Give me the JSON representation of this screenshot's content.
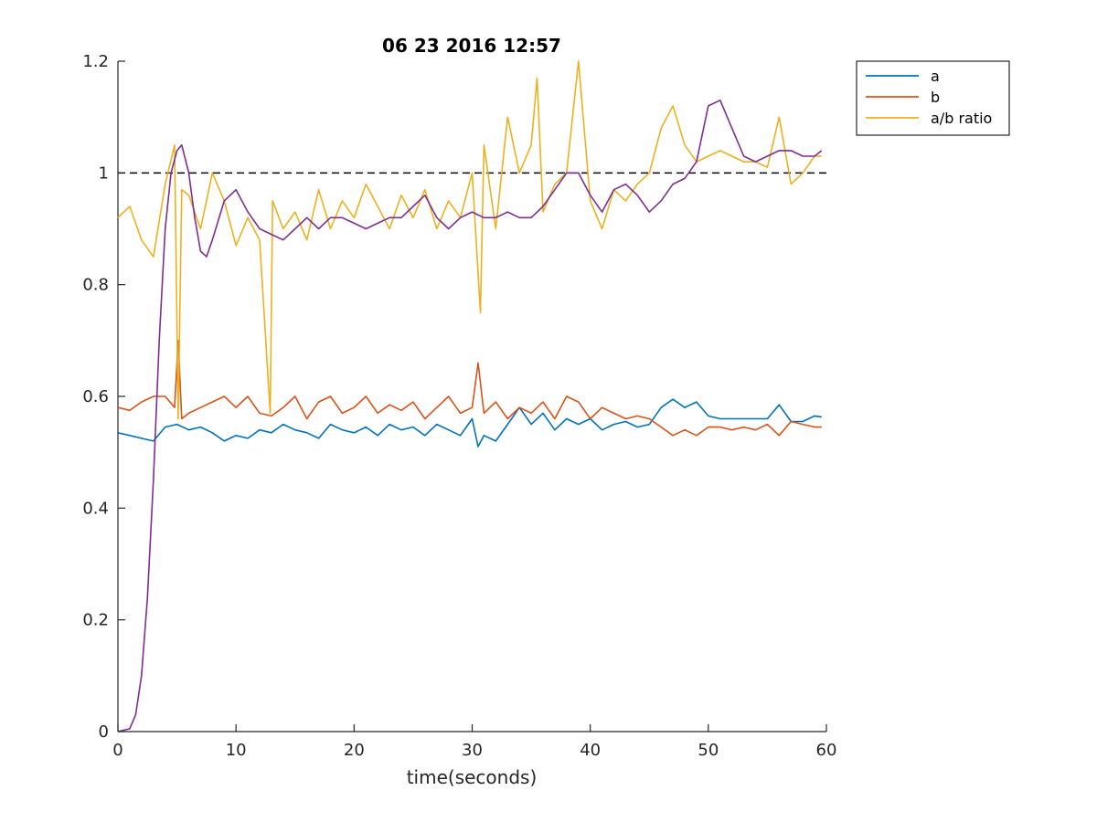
{
  "chart_data": {
    "type": "line",
    "title": "06 23 2016 12:57",
    "xlabel": "time(seconds)",
    "ylabel": "",
    "xlim": [
      0,
      60
    ],
    "ylim": [
      0,
      1.2
    ],
    "x_ticks": [
      0,
      10,
      20,
      30,
      40,
      50,
      60
    ],
    "y_ticks": [
      0,
      0.2,
      0.4,
      0.6,
      0.8,
      1,
      1.2
    ],
    "x_tick_labels": [
      "0",
      "10",
      "20",
      "30",
      "40",
      "50",
      "60"
    ],
    "y_tick_labels": [
      "0",
      "0.2",
      "0.4",
      "0.6",
      "0.8",
      "1",
      "1.2"
    ],
    "grid": false,
    "legend_position": "outside-top-right",
    "reference_line": {
      "y": 1,
      "style": "dashed",
      "color": "#000000"
    },
    "series": [
      {
        "name": "a",
        "color": "#0072BD",
        "x": [
          0,
          1,
          2,
          3,
          4,
          5,
          6,
          7,
          8,
          9,
          10,
          11,
          12,
          13,
          14,
          15,
          16,
          17,
          18,
          19,
          20,
          21,
          22,
          23,
          24,
          25,
          26,
          27,
          28,
          29,
          30,
          30.5,
          31,
          32,
          33,
          34,
          35,
          36,
          37,
          38,
          39,
          40,
          41,
          42,
          43,
          44,
          45,
          46,
          47,
          48,
          49,
          50,
          51,
          52,
          53,
          54,
          55,
          56,
          57,
          58,
          59,
          59.6
        ],
        "values": [
          0.535,
          0.53,
          0.525,
          0.52,
          0.545,
          0.55,
          0.54,
          0.545,
          0.535,
          0.52,
          0.53,
          0.525,
          0.54,
          0.535,
          0.55,
          0.54,
          0.535,
          0.525,
          0.55,
          0.54,
          0.535,
          0.545,
          0.53,
          0.55,
          0.54,
          0.545,
          0.53,
          0.55,
          0.54,
          0.53,
          0.56,
          0.51,
          0.53,
          0.52,
          0.55,
          0.58,
          0.55,
          0.57,
          0.54,
          0.56,
          0.55,
          0.56,
          0.54,
          0.55,
          0.555,
          0.545,
          0.55,
          0.58,
          0.595,
          0.58,
          0.59,
          0.565,
          0.56,
          0.56,
          0.56,
          0.56,
          0.56,
          0.585,
          0.555,
          0.555,
          0.565,
          0.563
        ]
      },
      {
        "name": "b",
        "color": "#D95319",
        "x": [
          0,
          1,
          2,
          3,
          4,
          4.8,
          5.1,
          5.4,
          6,
          7,
          8,
          9,
          10,
          11,
          12,
          13,
          14,
          15,
          16,
          17,
          18,
          19,
          20,
          21,
          22,
          23,
          24,
          25,
          26,
          27,
          28,
          29,
          30,
          30.5,
          31,
          32,
          33,
          34,
          35,
          36,
          37,
          38,
          39,
          40,
          41,
          42,
          43,
          44,
          45,
          46,
          47,
          48,
          49,
          50,
          51,
          52,
          53,
          54,
          55,
          56,
          57,
          58,
          59,
          59.6
        ],
        "values": [
          0.58,
          0.575,
          0.59,
          0.6,
          0.6,
          0.58,
          0.7,
          0.56,
          0.57,
          0.58,
          0.59,
          0.6,
          0.58,
          0.6,
          0.57,
          0.565,
          0.58,
          0.6,
          0.56,
          0.59,
          0.6,
          0.57,
          0.58,
          0.6,
          0.57,
          0.585,
          0.575,
          0.59,
          0.56,
          0.58,
          0.6,
          0.57,
          0.58,
          0.66,
          0.57,
          0.59,
          0.56,
          0.58,
          0.57,
          0.59,
          0.56,
          0.6,
          0.59,
          0.56,
          0.58,
          0.57,
          0.56,
          0.565,
          0.56,
          0.545,
          0.53,
          0.54,
          0.53,
          0.545,
          0.545,
          0.54,
          0.545,
          0.54,
          0.55,
          0.53,
          0.555,
          0.55,
          0.545,
          0.545
        ]
      },
      {
        "name": "a/b ratio",
        "color": "#EDB120",
        "x": [
          0,
          1,
          2,
          3,
          4,
          4.8,
          5.1,
          5.4,
          6,
          7,
          8,
          9,
          10,
          11,
          12,
          12.9,
          13.1,
          14,
          15,
          16,
          17,
          18,
          19,
          20,
          21,
          22,
          23,
          24,
          25,
          26,
          27,
          28,
          29,
          30,
          30.7,
          31,
          32,
          33,
          34,
          35,
          35.5,
          36,
          37,
          38,
          39,
          40,
          41,
          42,
          43,
          44,
          45,
          46,
          47,
          48,
          49,
          50,
          51,
          52,
          53,
          54,
          55,
          56,
          57,
          58,
          59,
          59.6
        ],
        "values": [
          0.92,
          0.94,
          0.88,
          0.85,
          0.98,
          1.05,
          0.56,
          0.97,
          0.96,
          0.9,
          1.0,
          0.95,
          0.87,
          0.92,
          0.88,
          0.57,
          0.95,
          0.9,
          0.93,
          0.88,
          0.97,
          0.9,
          0.95,
          0.92,
          0.98,
          0.94,
          0.9,
          0.96,
          0.92,
          0.97,
          0.9,
          0.95,
          0.92,
          1.0,
          0.75,
          1.05,
          0.9,
          1.1,
          1.0,
          1.05,
          1.17,
          0.93,
          0.98,
          1.0,
          1.2,
          0.95,
          0.9,
          0.97,
          0.95,
          0.98,
          1.0,
          1.08,
          1.12,
          1.05,
          1.02,
          1.03,
          1.04,
          1.03,
          1.02,
          1.02,
          1.01,
          1.1,
          0.98,
          1.0,
          1.03,
          1.03
        ]
      },
      {
        "name": "",
        "color": "#7E2F8E",
        "x": [
          0,
          1,
          1.5,
          2,
          2.5,
          3,
          3.5,
          4,
          4.5,
          5,
          5.4,
          6,
          6.5,
          7,
          7.5,
          8,
          9,
          10,
          11,
          12,
          13,
          14,
          15,
          16,
          17,
          18,
          19,
          20,
          21,
          22,
          23,
          24,
          25,
          26,
          27,
          28,
          29,
          30,
          31,
          32,
          33,
          34,
          35,
          36,
          37,
          38,
          39,
          40,
          41,
          42,
          43,
          44,
          45,
          46,
          47,
          48,
          49,
          50,
          51,
          52,
          53,
          54,
          55,
          56,
          57,
          58,
          59,
          59.6
        ],
        "values": [
          0,
          0.005,
          0.03,
          0.1,
          0.24,
          0.45,
          0.7,
          0.9,
          1.0,
          1.04,
          1.05,
          1.0,
          0.92,
          0.86,
          0.85,
          0.88,
          0.95,
          0.97,
          0.93,
          0.9,
          0.89,
          0.88,
          0.9,
          0.92,
          0.9,
          0.92,
          0.92,
          0.91,
          0.9,
          0.91,
          0.92,
          0.92,
          0.94,
          0.96,
          0.92,
          0.9,
          0.92,
          0.93,
          0.92,
          0.92,
          0.93,
          0.92,
          0.92,
          0.94,
          0.97,
          1.0,
          1.0,
          0.96,
          0.93,
          0.97,
          0.98,
          0.96,
          0.93,
          0.95,
          0.98,
          0.99,
          1.02,
          1.12,
          1.13,
          1.08,
          1.03,
          1.02,
          1.03,
          1.04,
          1.04,
          1.03,
          1.03,
          1.04
        ]
      }
    ]
  }
}
